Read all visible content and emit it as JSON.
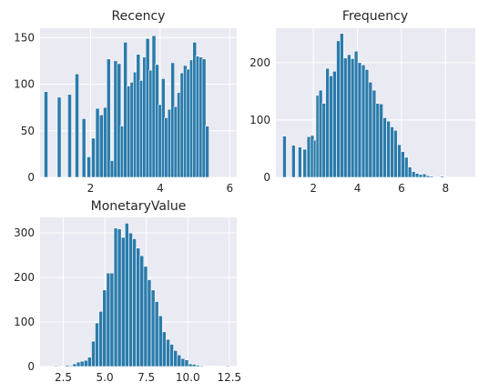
{
  "chart_data": [
    {
      "type": "bar",
      "title": "Recency",
      "xlim": [
        0.55,
        6.2
      ],
      "ylim": [
        0,
        160
      ],
      "xticks": [
        {
          "value": 2,
          "label": "2"
        },
        {
          "value": 4,
          "label": "4"
        },
        {
          "value": 6,
          "label": "6"
        }
      ],
      "yticks": [
        {
          "value": 0,
          "label": "0"
        },
        {
          "value": 50,
          "label": "50"
        },
        {
          "value": 100,
          "label": "100"
        },
        {
          "value": 150,
          "label": "150"
        }
      ],
      "grid": true,
      "bin_width": 0.108,
      "x": [
        0.72,
        1.1,
        1.4,
        1.61,
        1.81,
        1.95,
        2.08,
        2.2,
        2.31,
        2.42,
        2.52,
        2.62,
        2.72,
        2.82,
        2.91,
        3.0,
        3.1,
        3.19,
        3.28,
        3.37,
        3.46,
        3.55,
        3.64,
        3.73,
        3.82,
        3.91,
        4.0,
        4.09,
        4.18,
        4.27,
        4.36,
        4.45,
        4.54,
        4.63,
        4.72,
        4.81,
        4.9,
        4.99,
        5.08,
        5.17,
        5.26,
        5.35,
        5.44,
        5.53,
        5.62,
        5.71,
        5.8,
        5.89
      ],
      "values": [
        92,
        86,
        89,
        111,
        63,
        22,
        42,
        74,
        67,
        75,
        127,
        18,
        125,
        122,
        55,
        145,
        98,
        102,
        113,
        132,
        104,
        129,
        149,
        115,
        152,
        121,
        78,
        106,
        64,
        73,
        123,
        76,
        91,
        112,
        120,
        116,
        126,
        145,
        130,
        129,
        127,
        55,
        0,
        0,
        0,
        0,
        0,
        0
      ]
    },
    {
      "type": "bar",
      "title": "Frequency",
      "xlim": [
        0.3,
        9.35
      ],
      "ylim": [
        0,
        260
      ],
      "xticks": [
        {
          "value": 2,
          "label": "2"
        },
        {
          "value": 4,
          "label": "4"
        },
        {
          "value": 6,
          "label": "6"
        },
        {
          "value": 8,
          "label": "8"
        }
      ],
      "yticks": [
        {
          "value": 0,
          "label": "0"
        },
        {
          "value": 100,
          "label": "100"
        },
        {
          "value": 200,
          "label": "200"
        }
      ],
      "grid": true,
      "bin_width": 0.163,
      "x": [
        0.69,
        1.1,
        1.39,
        1.61,
        1.79,
        1.95,
        2.08,
        2.2,
        2.33,
        2.48,
        2.64,
        2.8,
        2.96,
        3.13,
        3.29,
        3.45,
        3.62,
        3.78,
        3.94,
        4.1,
        4.27,
        4.43,
        4.59,
        4.76,
        4.92,
        5.08,
        5.24,
        5.41,
        5.57,
        5.73,
        5.9,
        6.06,
        6.22,
        6.38,
        6.55,
        6.71,
        6.87,
        7.04,
        7.2,
        7.36,
        7.52,
        7.69,
        7.85,
        8.01,
        8.18,
        8.34,
        8.5,
        8.66,
        8.83,
        8.99
      ],
      "values": [
        72,
        56,
        53,
        49,
        71,
        73,
        65,
        143,
        152,
        129,
        190,
        177,
        185,
        238,
        251,
        208,
        214,
        207,
        220,
        200,
        196,
        188,
        166,
        152,
        129,
        128,
        104,
        98,
        88,
        82,
        57,
        45,
        35,
        18,
        10,
        7,
        5,
        6,
        3,
        2,
        1,
        1,
        2,
        1,
        1,
        0,
        0,
        1,
        0,
        1
      ]
    },
    {
      "type": "bar",
      "title": "MonetaryValue",
      "xlim": [
        1.1,
        12.95
      ],
      "ylim": [
        0,
        335
      ],
      "xticks": [
        {
          "value": 2.5,
          "label": "2.5"
        },
        {
          "value": 5.0,
          "label": "5.0"
        },
        {
          "value": 7.5,
          "label": "7.5"
        },
        {
          "value": 10.0,
          "label": "10.0"
        },
        {
          "value": 12.5,
          "label": "12.5"
        }
      ],
      "yticks": [
        {
          "value": 0,
          "label": "0"
        },
        {
          "value": 100,
          "label": "100"
        },
        {
          "value": 200,
          "label": "200"
        },
        {
          "value": 300,
          "label": "300"
        }
      ],
      "grid": true,
      "bin_width": 0.225,
      "x": [
        1.61,
        1.83,
        2.06,
        2.28,
        2.51,
        2.73,
        2.96,
        3.18,
        3.41,
        3.63,
        3.86,
        4.08,
        4.31,
        4.53,
        4.76,
        4.98,
        5.21,
        5.43,
        5.66,
        5.88,
        6.11,
        6.33,
        6.56,
        6.78,
        7.01,
        7.23,
        7.46,
        7.68,
        7.91,
        8.13,
        8.36,
        8.58,
        8.81,
        9.03,
        9.26,
        9.48,
        9.71,
        9.93,
        10.16,
        10.38,
        10.61,
        10.83,
        11.06,
        11.28,
        11.51,
        11.73,
        11.96,
        12.18,
        12.41,
        12.63
      ],
      "values": [
        1,
        0,
        2,
        1,
        1,
        3,
        2,
        6,
        10,
        12,
        14,
        21,
        57,
        98,
        124,
        172,
        210,
        210,
        311,
        309,
        290,
        322,
        300,
        287,
        266,
        249,
        225,
        195,
        172,
        146,
        114,
        78,
        61,
        50,
        36,
        26,
        18,
        15,
        6,
        5,
        3,
        2,
        1,
        1,
        1,
        1,
        0,
        1,
        2,
        1
      ]
    }
  ]
}
